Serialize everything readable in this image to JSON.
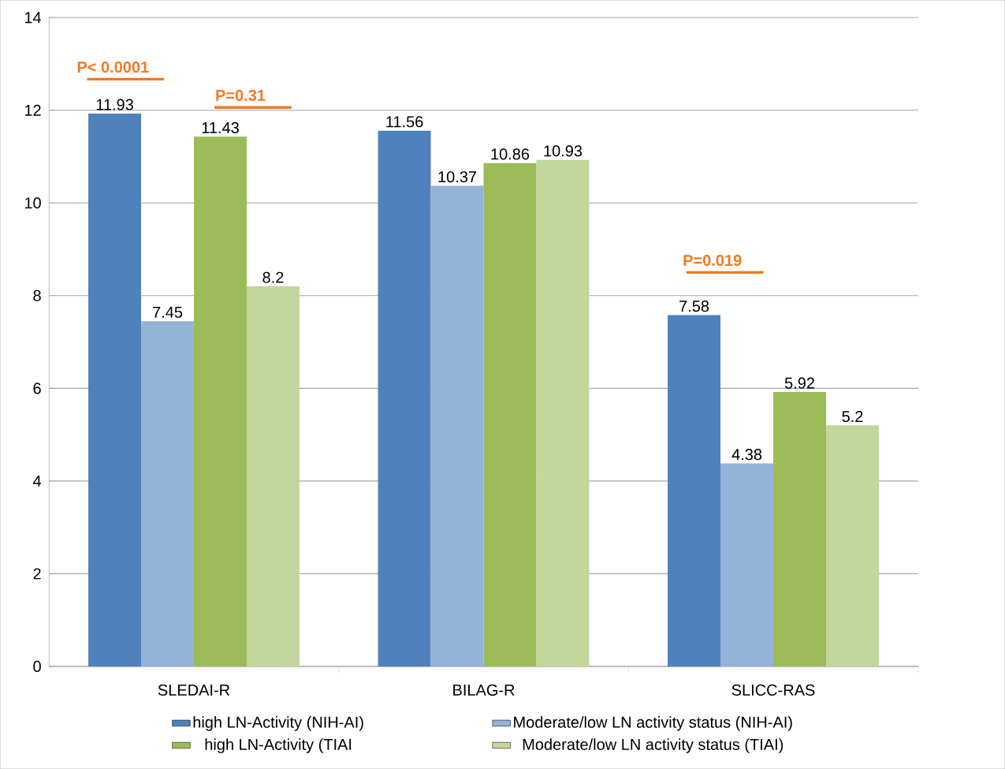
{
  "chart_data": {
    "type": "bar",
    "categories": [
      "SLEDAI-R",
      "BILAG-R",
      "SLICC-RAS"
    ],
    "series": [
      {
        "name": "high LN-Activity (NIH-AI)",
        "color": "#4f81bd",
        "values": [
          11.93,
          11.56,
          7.58
        ]
      },
      {
        "name": "Moderate/low LN activity status (NIH-AI)",
        "color": "#95b3d7",
        "values": [
          7.45,
          10.37,
          4.38
        ]
      },
      {
        "name": "high LN-Activity (TIAI",
        "color": "#9bbb59",
        "values": [
          11.43,
          10.86,
          5.92
        ]
      },
      {
        "name": "Moderate/low LN activity status (TIAI)",
        "color": "#c3d69b",
        "values": [
          8.2,
          10.93,
          5.2
        ]
      }
    ],
    "ylim": [
      0,
      14
    ],
    "yticks": [
      0,
      2,
      4,
      6,
      8,
      10,
      12,
      14
    ],
    "grid": "y",
    "legend": "bottom",
    "data_labels": true,
    "annotations": [
      "P< 0.0001",
      "P=0.31",
      "P=0.019"
    ]
  }
}
